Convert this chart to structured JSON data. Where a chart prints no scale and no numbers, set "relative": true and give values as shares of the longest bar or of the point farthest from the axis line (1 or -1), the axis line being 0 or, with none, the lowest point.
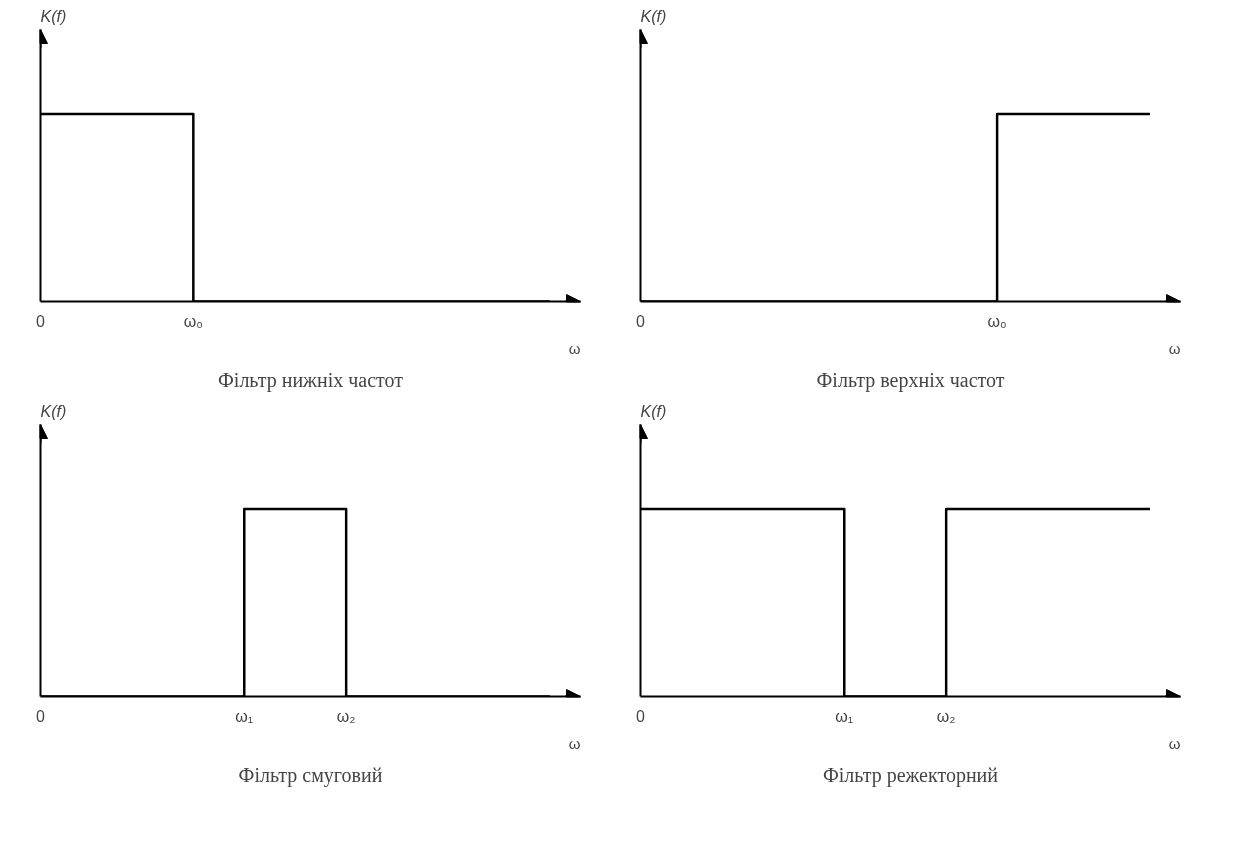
{
  "chart_data": [
    {
      "type": "step",
      "title": "Фільтр нижніх частот",
      "xlabel": "ω",
      "ylabel": "K(f)",
      "relative": true,
      "categories": [
        "0",
        null,
        null,
        "ω₀",
        null,
        null,
        null,
        null,
        null,
        null,
        null
      ],
      "series": [
        {
          "color": "#000000",
          "values": [
            1,
            1,
            1,
            0,
            0,
            0,
            0,
            0,
            0,
            0,
            0
          ]
        }
      ],
      "tick_labels": "x",
      "grid": false
    },
    {
      "type": "step",
      "title": "Фільтр верхніх частот",
      "xlabel": "ω",
      "ylabel": "K(f)",
      "relative": true,
      "categories": [
        "0",
        null,
        null,
        null,
        null,
        null,
        null,
        "ω₀",
        null,
        null,
        null
      ],
      "series": [
        {
          "color": "#000000",
          "values": [
            0,
            0,
            0,
            0,
            0,
            0,
            0,
            1,
            1,
            1,
            1
          ]
        }
      ],
      "tick_labels": "x",
      "grid": false
    },
    {
      "type": "step",
      "title": "Фільтр смуговий",
      "xlabel": "ω",
      "ylabel": "K(f)",
      "relative": true,
      "categories": [
        "0",
        null,
        null,
        null,
        "ω₁",
        null,
        "ω₂",
        null,
        null,
        null,
        null
      ],
      "series": [
        {
          "color": "#000000",
          "values": [
            0,
            0,
            0,
            0,
            1,
            1,
            0,
            0,
            0,
            0,
            0
          ]
        }
      ],
      "tick_labels": "x",
      "grid": false
    },
    {
      "type": "step",
      "title": "Фільтр режекторний",
      "xlabel": "ω",
      "ylabel": "K(f)",
      "relative": true,
      "categories": [
        "0",
        null,
        null,
        null,
        "ω₁",
        null,
        "ω₂",
        null,
        null,
        null,
        null
      ],
      "series": [
        {
          "color": "#000000",
          "values": [
            1,
            1,
            1,
            1,
            0,
            0,
            1,
            1,
            1,
            1,
            1
          ]
        }
      ],
      "tick_labels": "x",
      "grid": false
    }
  ]
}
